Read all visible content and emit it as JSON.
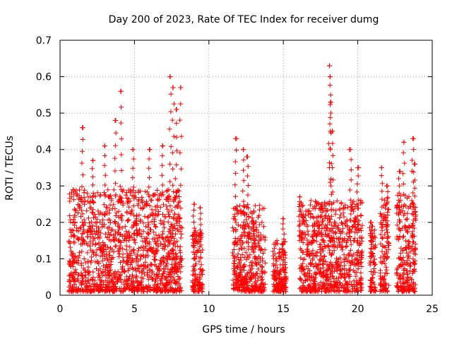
{
  "chart_data": {
    "type": "scatter",
    "title": "Day 200 of 2023, Rate Of TEC Index for receiver dumg",
    "xlabel": "GPS time / hours",
    "ylabel": "ROTI / TECUs",
    "xlim": [
      0,
      25
    ],
    "ylim": [
      0,
      0.7
    ],
    "x_ticks": [
      0,
      5,
      10,
      15,
      20,
      25
    ],
    "y_ticks": [
      0,
      0.1,
      0.2,
      0.3,
      0.4,
      0.5,
      0.6,
      0.7
    ],
    "x_tick_labels": [
      "0",
      "5",
      "10",
      "15",
      "20",
      "25"
    ],
    "y_tick_labels": [
      "0",
      "0.1",
      "0.2",
      "0.3",
      "0.4",
      "0.5",
      "0.6",
      "0.7"
    ],
    "grid": true,
    "marker": "+",
    "color": "#ff0000",
    "series": [
      {
        "name": "ROTI",
        "clusters": [
          {
            "start": 0.6,
            "end": 8.2,
            "base_max": 0.28,
            "peaks": [
              [
                1.5,
                0.46
              ],
              [
                2.2,
                0.37
              ],
              [
                3.0,
                0.41
              ],
              [
                3.7,
                0.48
              ],
              [
                4.1,
                0.56
              ],
              [
                4.9,
                0.4
              ],
              [
                6.0,
                0.4
              ],
              [
                6.9,
                0.41
              ],
              [
                7.4,
                0.6
              ],
              [
                7.6,
                0.57
              ],
              [
                7.8,
                0.51
              ],
              [
                8.1,
                0.57
              ]
            ]
          },
          {
            "start": 8.9,
            "end": 9.6,
            "base_max": 0.17,
            "peaks": [
              [
                9.0,
                0.25
              ],
              [
                9.4,
                0.24
              ]
            ]
          },
          {
            "start": 11.6,
            "end": 13.8,
            "base_max": 0.24,
            "peaks": [
              [
                11.8,
                0.43
              ],
              [
                12.3,
                0.4
              ],
              [
                12.6,
                0.38
              ],
              [
                13.0,
                0.2
              ]
            ]
          },
          {
            "start": 14.3,
            "end": 15.2,
            "base_max": 0.14,
            "peaks": [
              [
                15.0,
                0.21
              ]
            ]
          },
          {
            "start": 16.1,
            "end": 20.3,
            "base_max": 0.25,
            "peaks": [
              [
                16.1,
                0.27
              ],
              [
                17.6,
                0.25
              ],
              [
                18.1,
                0.63
              ],
              [
                18.15,
                0.6
              ],
              [
                18.2,
                0.53
              ],
              [
                18.3,
                0.45
              ],
              [
                19.5,
                0.4
              ],
              [
                20.0,
                0.35
              ]
            ]
          },
          {
            "start": 20.8,
            "end": 21.2,
            "base_max": 0.18,
            "peaks": [
              [
                20.9,
                0.2
              ]
            ]
          },
          {
            "start": 21.5,
            "end": 22.1,
            "base_max": 0.26,
            "peaks": [
              [
                21.6,
                0.35
              ],
              [
                22.0,
                0.3
              ]
            ]
          },
          {
            "start": 22.6,
            "end": 23.9,
            "base_max": 0.27,
            "peaks": [
              [
                22.8,
                0.34
              ],
              [
                23.1,
                0.42
              ],
              [
                23.7,
                0.43
              ],
              [
                23.8,
                0.36
              ]
            ]
          }
        ]
      }
    ]
  }
}
